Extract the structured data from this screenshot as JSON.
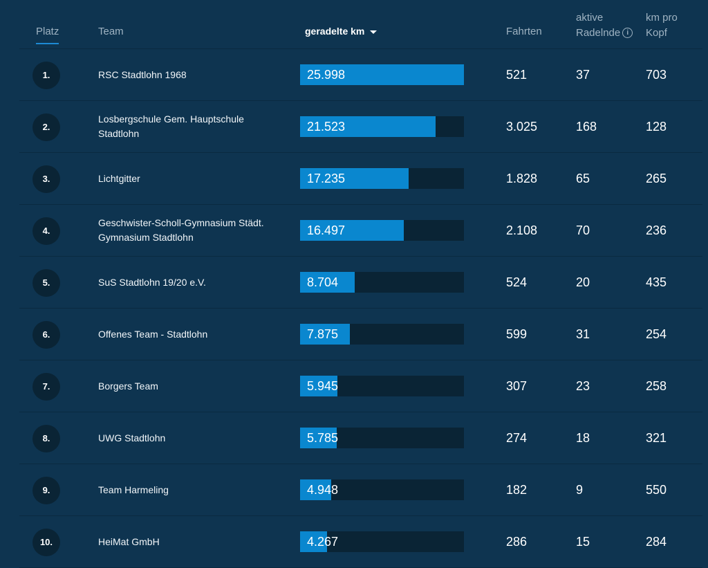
{
  "header": {
    "platz": "Platz",
    "team": "Team",
    "km": "geradelte km",
    "fahrten": "Fahrten",
    "aktive_line1": "aktive",
    "aktive_line2": "Radelnde",
    "info_icon": "i",
    "kopf_line1": "km pro",
    "kopf_line2": "Kopf"
  },
  "colors": {
    "background": "#0e3450",
    "bar": "#0a87cf",
    "bar_track": "#0a2435",
    "tab_underline": "#1d8ad4"
  },
  "max_km": 25998,
  "rows": [
    {
      "rank": "1.",
      "team": "RSC Stadtlohn 1968",
      "km": "25.998",
      "km_value": 25998,
      "fahrten": "521",
      "aktive": "37",
      "kopf": "703"
    },
    {
      "rank": "2.",
      "team": "Losbergschule Gem. Hauptschule Stadtlohn",
      "km": "21.523",
      "km_value": 21523,
      "fahrten": "3.025",
      "aktive": "168",
      "kopf": "128"
    },
    {
      "rank": "3.",
      "team": "Lichtgitter",
      "km": "17.235",
      "km_value": 17235,
      "fahrten": "1.828",
      "aktive": "65",
      "kopf": "265"
    },
    {
      "rank": "4.",
      "team": "Geschwister-Scholl-Gymnasium Städt. Gymnasium Stadtlohn",
      "km": "16.497",
      "km_value": 16497,
      "fahrten": "2.108",
      "aktive": "70",
      "kopf": "236"
    },
    {
      "rank": "5.",
      "team": "SuS Stadtlohn 19/20 e.V.",
      "km": "8.704",
      "km_value": 8704,
      "fahrten": "524",
      "aktive": "20",
      "kopf": "435"
    },
    {
      "rank": "6.",
      "team": "Offenes Team - Stadtlohn",
      "km": "7.875",
      "km_value": 7875,
      "fahrten": "599",
      "aktive": "31",
      "kopf": "254"
    },
    {
      "rank": "7.",
      "team": "Borgers Team",
      "km": "5.945",
      "km_value": 5945,
      "fahrten": "307",
      "aktive": "23",
      "kopf": "258"
    },
    {
      "rank": "8.",
      "team": "UWG Stadtlohn",
      "km": "5.785",
      "km_value": 5785,
      "fahrten": "274",
      "aktive": "18",
      "kopf": "321"
    },
    {
      "rank": "9.",
      "team": "Team Harmeling",
      "km": "4.948",
      "km_value": 4948,
      "fahrten": "182",
      "aktive": "9",
      "kopf": "550"
    },
    {
      "rank": "10.",
      "team": "HeiMat GmbH",
      "km": "4.267",
      "km_value": 4267,
      "fahrten": "286",
      "aktive": "15",
      "kopf": "284"
    }
  ]
}
